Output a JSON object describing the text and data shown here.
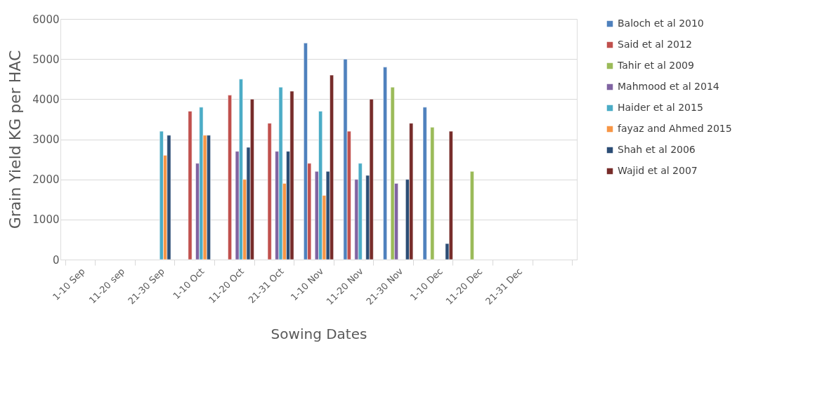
{
  "chart_data": {
    "type": "bar",
    "xlabel": "Sowing Dates",
    "ylabel": "Grain Yield KG per HAC",
    "categories": [
      "1-10 Sep",
      "11-20 sep",
      "21-30 Sep",
      "1-10 Oct",
      "11-20 Oct",
      "21-31 Oct",
      "1-10 Nov",
      "11-20 Nov",
      "21-30 Nov",
      "1-10 Dec",
      "11-20 Dec",
      "21-31 Dec",
      null
    ],
    "series": [
      {
        "name": "Baloch et al 2010",
        "color": "#4f81bd",
        "values": [
          null,
          null,
          null,
          null,
          null,
          null,
          5400,
          5000,
          4800,
          3800,
          null,
          null,
          null
        ]
      },
      {
        "name": "Said et al 2012",
        "color": "#c0504d",
        "values": [
          null,
          null,
          null,
          3700,
          4100,
          3400,
          2400,
          3200,
          null,
          null,
          null,
          null,
          null
        ]
      },
      {
        "name": "Tahir et al 2009",
        "color": "#9bbb59",
        "values": [
          null,
          null,
          null,
          null,
          null,
          null,
          null,
          null,
          4300,
          3300,
          2200,
          null,
          null
        ]
      },
      {
        "name": "Mahmood et al 2014",
        "color": "#8064a2",
        "values": [
          null,
          null,
          null,
          2400,
          2700,
          2700,
          2200,
          2000,
          1900,
          null,
          null,
          null,
          null
        ]
      },
      {
        "name": "Haider et al 2015",
        "color": "#4bacc6",
        "values": [
          null,
          null,
          3200,
          3800,
          4500,
          4300,
          3700,
          2400,
          null,
          null,
          null,
          null,
          null
        ]
      },
      {
        "name": "fayaz and Ahmed 2015",
        "color": "#f79646",
        "values": [
          null,
          null,
          2600,
          3100,
          2000,
          1900,
          1600,
          null,
          null,
          null,
          null,
          null,
          null
        ]
      },
      {
        "name": "Shah et al 2006",
        "color": "#2c4d75",
        "values": [
          null,
          null,
          3100,
          3100,
          2800,
          2700,
          2200,
          2100,
          2000,
          400,
          null,
          null,
          null
        ]
      },
      {
        "name": "Wajid et al 2007",
        "color": "#772c2a",
        "values": [
          null,
          null,
          null,
          null,
          4000,
          4200,
          4600,
          4000,
          3400,
          3200,
          null,
          null,
          null
        ]
      }
    ],
    "ylim": [
      0,
      6000
    ],
    "yticks": [
      0,
      1000,
      2000,
      3000,
      4000,
      5000,
      6000
    ],
    "grid": "y",
    "legend": "right"
  }
}
